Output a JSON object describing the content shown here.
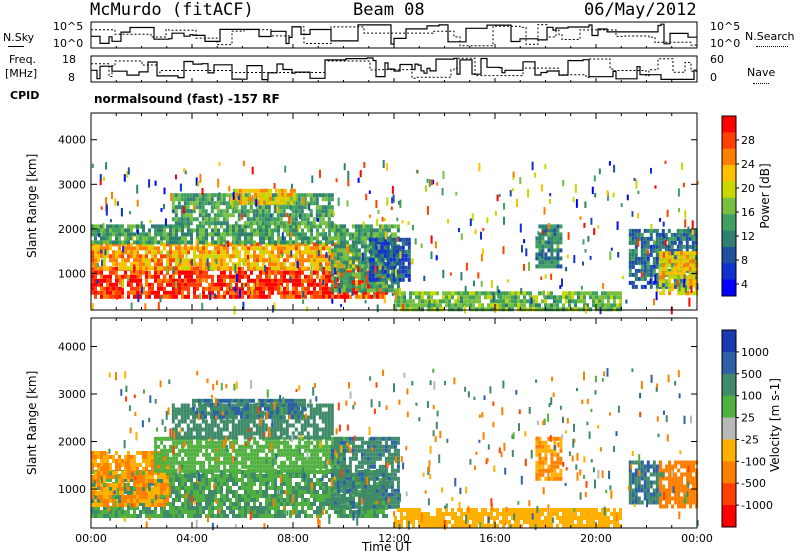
{
  "header": {
    "station": "McMurdo (fitACF)",
    "beam": "Beam 08",
    "date": "06/May/2012"
  },
  "top_panels": {
    "nsky_label": "N.Sky",
    "nsearch_label": "N.Search",
    "freq_label_1": "Freq.",
    "freq_label_2": "[MHz]",
    "nave_label": "Nave",
    "cpid_label": "CPID",
    "cpid_text": "normalsound (fast) -157 RF",
    "noise_ticks_left": [
      "10^5",
      "10^0"
    ],
    "noise_ticks_right": [
      "10^5",
      "10^0"
    ],
    "freq_ticks": [
      "18",
      "8"
    ],
    "nave_ticks": [
      "60",
      "0"
    ]
  },
  "colorbars": {
    "power": {
      "label": "Power [dB]",
      "ticks": [
        "28",
        "24",
        "20",
        "16",
        "12",
        "8",
        "4"
      ],
      "colors": [
        "#ff0000",
        "#ff4000",
        "#ff8000",
        "#ffc000",
        "#c8d800",
        "#78c040",
        "#40a060",
        "#308070",
        "#2050a0",
        "#1030d0",
        "#0000ff"
      ]
    },
    "velocity": {
      "label": "Velocity [m s-1]",
      "ticks": [
        "1000",
        "500",
        "100",
        "25",
        "-25",
        "-100",
        "-500",
        "-1000"
      ],
      "colors": [
        "#1a3ab0",
        "#2e60a8",
        "#3f8a68",
        "#50b040",
        "#b8b8b8",
        "#ffb000",
        "#ff8000",
        "#ff4000",
        "#ff0000"
      ]
    }
  },
  "chart_data": [
    {
      "type": "heatmap",
      "name": "Power",
      "ylabel": "Slant Range [km]",
      "xlabel": "Time UT",
      "y_ticks": [
        "4000",
        "3000",
        "2000",
        "1000"
      ],
      "ylim": [
        180,
        4600
      ],
      "xlim": [
        0,
        24
      ],
      "x_ticks": [
        "00:00",
        "04:00",
        "08:00",
        "12:00",
        "16:00",
        "20:00",
        "00:00"
      ],
      "regions": [
        {
          "t0": 0.0,
          "t1": 11.7,
          "r0": 450,
          "r1": 1150,
          "value": 28
        },
        {
          "t0": 0.0,
          "t1": 10.5,
          "r0": 1150,
          "r1": 1700,
          "value": 22
        },
        {
          "t0": 0.0,
          "t1": 10.0,
          "r0": 1700,
          "r1": 2100,
          "value": 12
        },
        {
          "t0": 3.2,
          "t1": 9.5,
          "r0": 2100,
          "r1": 2800,
          "value": 12
        },
        {
          "t0": 5.5,
          "t1": 8.0,
          "r0": 2600,
          "r1": 2900,
          "value": 20
        },
        {
          "t0": 9.5,
          "t1": 12.2,
          "r0": 600,
          "r1": 2100,
          "value": 12
        },
        {
          "t0": 11.0,
          "t1": 12.6,
          "r0": 900,
          "r1": 1800,
          "value": 6
        },
        {
          "t0": 17.6,
          "t1": 18.6,
          "r0": 1200,
          "r1": 2100,
          "value": 10
        },
        {
          "t0": 21.3,
          "t1": 24.0,
          "r0": 700,
          "r1": 2000,
          "value": 8
        },
        {
          "t0": 22.5,
          "t1": 24.0,
          "r0": 600,
          "r1": 1500,
          "value": 20
        },
        {
          "t0": 12.0,
          "t1": 21.0,
          "r0": 180,
          "r1": 600,
          "value": 14
        }
      ]
    },
    {
      "type": "heatmap",
      "name": "Velocity",
      "ylabel": "Slant Range [km]",
      "xlabel": "Time UT",
      "y_ticks": [
        "4000",
        "3000",
        "2000",
        "1000"
      ],
      "ylim": [
        180,
        4600
      ],
      "xlim": [
        0,
        24
      ],
      "x_ticks": [
        "00:00",
        "04:00",
        "08:00",
        "12:00",
        "16:00",
        "20:00",
        "00:00"
      ],
      "regions": [
        {
          "t0": 0.0,
          "t1": 11.7,
          "r0": 450,
          "r1": 1400,
          "value": 100
        },
        {
          "t0": 0.0,
          "t1": 3.0,
          "r0": 700,
          "r1": 1800,
          "value": -100
        },
        {
          "t0": 2.5,
          "t1": 10.0,
          "r0": 1400,
          "r1": 2100,
          "value": 50
        },
        {
          "t0": 3.2,
          "t1": 9.5,
          "r0": 2100,
          "r1": 2800,
          "value": 300
        },
        {
          "t0": 4.0,
          "t1": 8.5,
          "r0": 2500,
          "r1": 2900,
          "value": 500
        },
        {
          "t0": 9.5,
          "t1": 12.2,
          "r0": 600,
          "r1": 2100,
          "value": 400
        },
        {
          "t0": 17.6,
          "t1": 18.6,
          "r0": 1200,
          "r1": 2100,
          "value": -100
        },
        {
          "t0": 21.3,
          "t1": 22.6,
          "r0": 700,
          "r1": 1600,
          "value": 500
        },
        {
          "t0": 22.5,
          "t1": 24.0,
          "r0": 600,
          "r1": 1600,
          "value": -300
        },
        {
          "t0": 12.0,
          "t1": 21.0,
          "r0": 180,
          "r1": 600,
          "value": -50
        }
      ]
    }
  ]
}
